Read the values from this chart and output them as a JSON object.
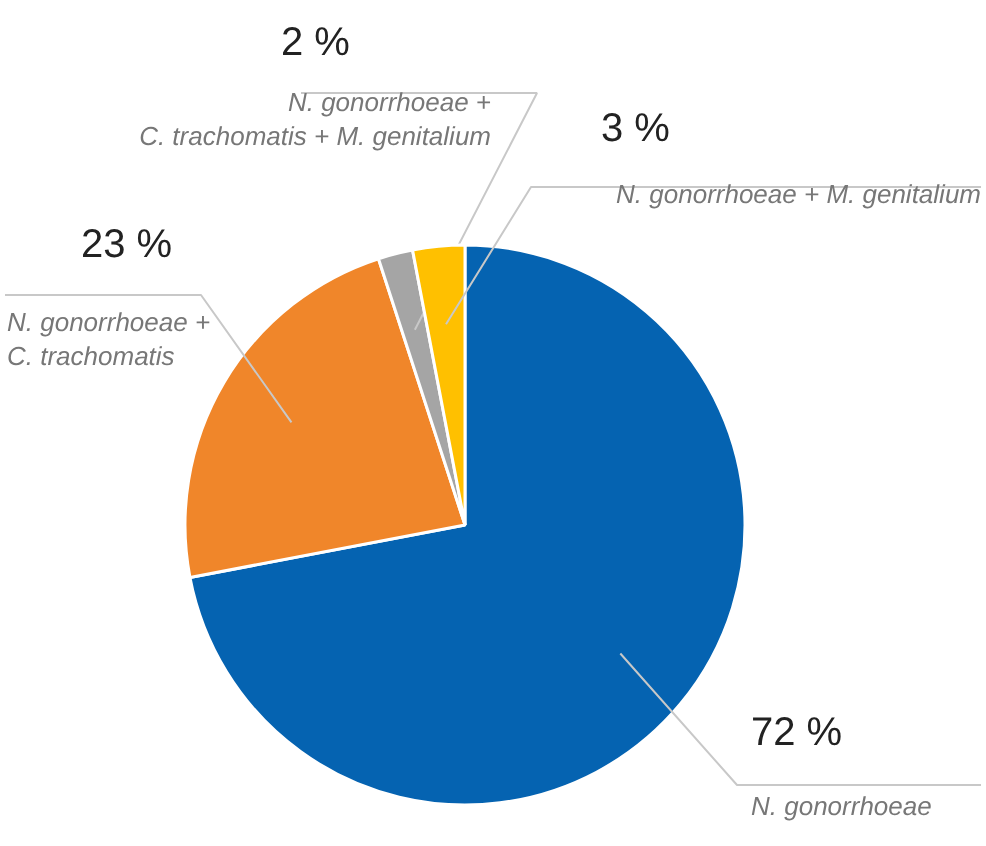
{
  "chart_data": {
    "type": "pie",
    "categories": [
      "N. gonorrhoeae",
      "N. gonorrhoeae +\nC. trachomatis",
      "N. gonorrhoeae +\nC. trachomatis + M. genitalium",
      "N. gonorrhoeae + M. genitalium"
    ],
    "values": [
      72,
      23,
      2,
      3
    ],
    "colors": [
      "#0563b1",
      "#f0862a",
      "#a5a5a5",
      "#ffc000"
    ],
    "value_labels": [
      "72 %",
      "23 %",
      "2 %",
      "3 %"
    ]
  }
}
